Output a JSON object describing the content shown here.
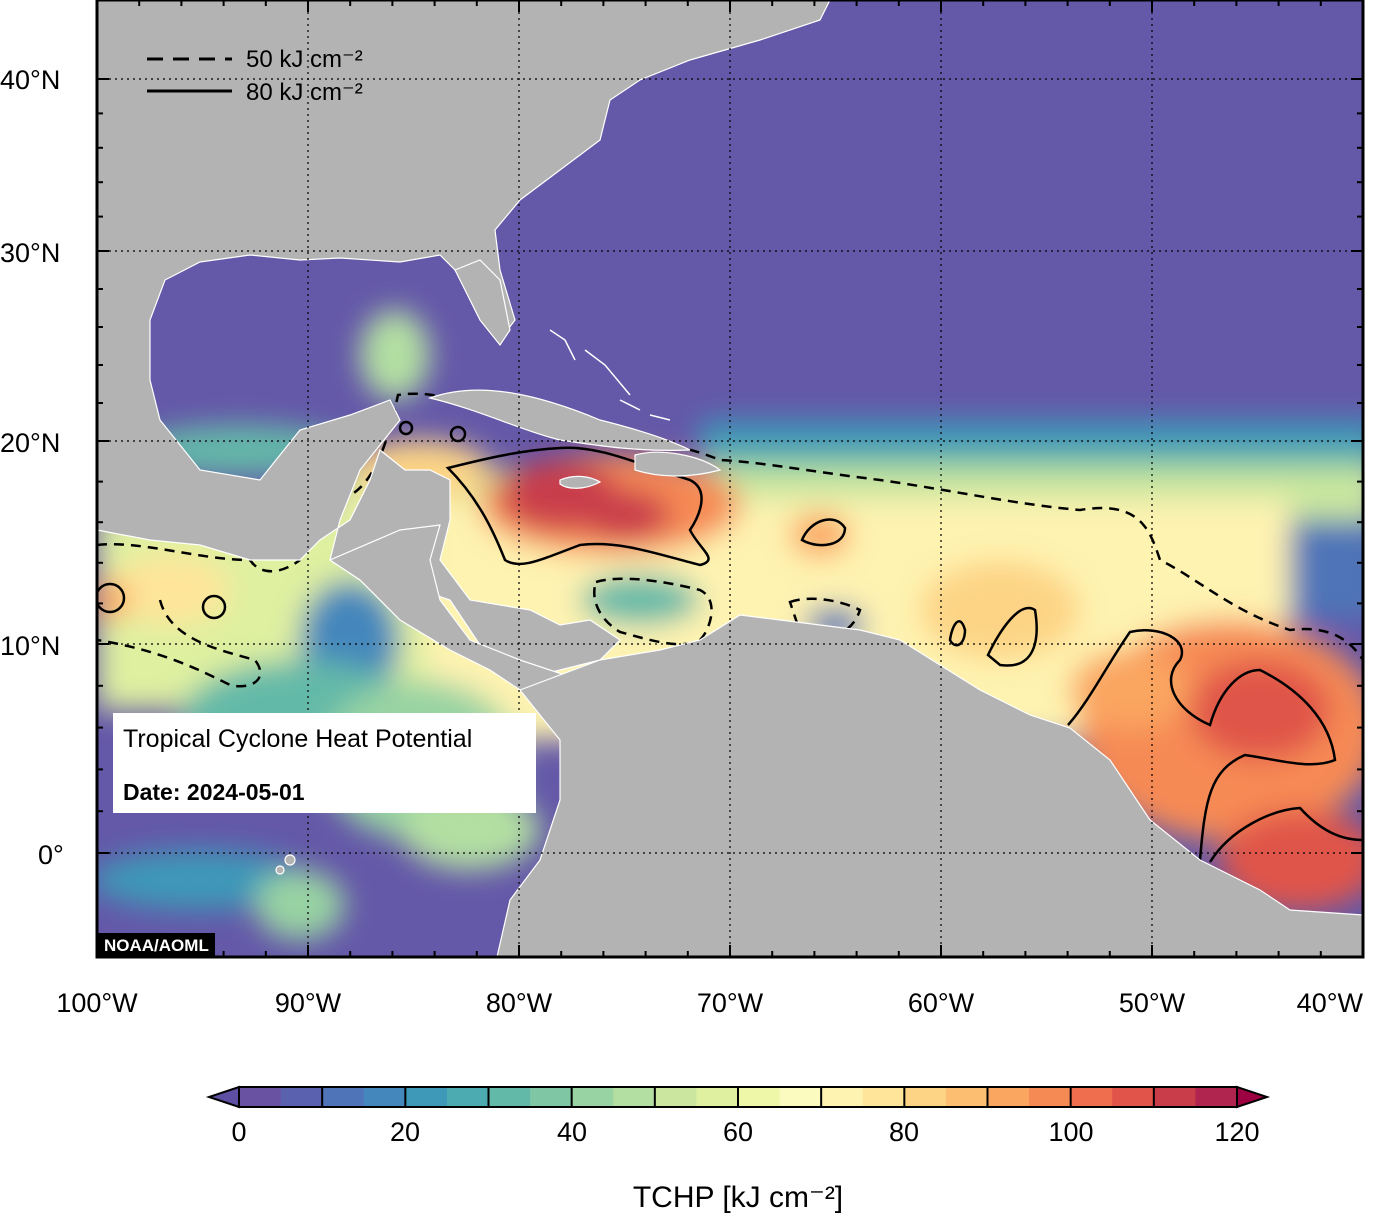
{
  "map": {
    "title": "Tropical Cyclone Heat Potential",
    "date_label": "Date: 2024-05-01",
    "credit": "NOAA/AOML",
    "lat_labels": [
      "40°N",
      "30°N",
      "20°N",
      "10°N",
      "0°"
    ],
    "lon_labels": [
      "100°W",
      "90°W",
      "80°W",
      "70°W",
      "60°W",
      "50°W",
      "40°W"
    ],
    "contour_legend": [
      {
        "style": "dashed",
        "label": "50 kJ cm⁻²"
      },
      {
        "style": "solid",
        "label": "80 kJ cm⁻²"
      }
    ],
    "colors": {
      "land": "#b3b3b3",
      "cold": "#6458a8",
      "frame": "#000000"
    }
  },
  "colorbar": {
    "title": "TCHP [kJ cm⁻²]",
    "ticks": [
      "0",
      "20",
      "40",
      "60",
      "80",
      "100",
      "120"
    ],
    "min": 0,
    "max": 120,
    "step": 5,
    "colors": [
      "#6a52a3",
      "#5a62b0",
      "#4f74b8",
      "#4487bc",
      "#3e99b8",
      "#4cabb0",
      "#63b9a8",
      "#7ec6a4",
      "#98d3a3",
      "#b3dfa2",
      "#cbe79f",
      "#dff0a0",
      "#eef7a8",
      "#fbfbbf",
      "#fef3b1",
      "#fee59a",
      "#fdd485",
      "#fcbe70",
      "#faa560",
      "#f68a54",
      "#ee6e4d",
      "#e05449",
      "#c93d4b",
      "#b02550"
    ],
    "under_color": "#5e4fa2",
    "over_color": "#9e0142"
  }
}
